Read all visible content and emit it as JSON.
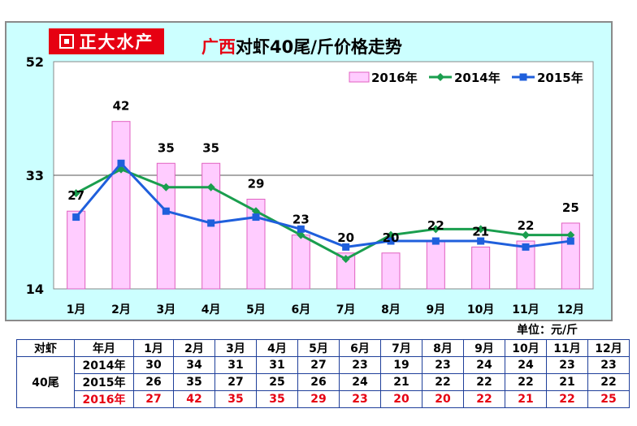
{
  "logo": {
    "text": "正大水产"
  },
  "title": {
    "prefix": "广西",
    "rest": "对虾40尾/斤价格走势"
  },
  "unit": "单位：元/斤",
  "colors": {
    "bar_fill": "#ffccff",
    "bar_stroke": "#e060c0",
    "line_2014": "#1a9e4e",
    "line_2015": "#1f5fdc",
    "red": "#e60012"
  },
  "chart_data": {
    "type": "bar+line",
    "categories": [
      "1月",
      "2月",
      "3月",
      "4月",
      "5月",
      "6月",
      "7月",
      "8月",
      "9月",
      "10月",
      "11月",
      "12月"
    ],
    "ylim": [
      14,
      52
    ],
    "yticks": [
      14,
      33,
      52
    ],
    "grid_at": [
      33
    ],
    "legend_position": "top-right",
    "series": [
      {
        "name": "2016年",
        "kind": "bar",
        "values": [
          27,
          42,
          35,
          35,
          29,
          23,
          20,
          20,
          22,
          21,
          22,
          25
        ]
      },
      {
        "name": "2014年",
        "kind": "line",
        "values": [
          30,
          34,
          31,
          31,
          27,
          23,
          19,
          23,
          24,
          24,
          23,
          23
        ]
      },
      {
        "name": "2015年",
        "kind": "line",
        "values": [
          26,
          35,
          27,
          25,
          26,
          24,
          21,
          22,
          22,
          22,
          21,
          22
        ]
      }
    ]
  },
  "table": {
    "corner": "对虾",
    "year_header": "年月",
    "size_label": "40尾",
    "months": [
      "1月",
      "2月",
      "3月",
      "4月",
      "5月",
      "6月",
      "7月",
      "8月",
      "9月",
      "10月",
      "11月",
      "12月"
    ],
    "rows": [
      {
        "year": "2014年",
        "values": [
          30,
          34,
          31,
          31,
          27,
          23,
          19,
          23,
          24,
          24,
          23,
          23
        ],
        "highlight": false
      },
      {
        "year": "2015年",
        "values": [
          26,
          35,
          27,
          25,
          26,
          24,
          21,
          22,
          22,
          22,
          21,
          22
        ],
        "highlight": false
      },
      {
        "year": "2016年",
        "values": [
          27,
          42,
          35,
          35,
          29,
          23,
          20,
          20,
          22,
          21,
          22,
          25
        ],
        "highlight": true
      }
    ]
  }
}
